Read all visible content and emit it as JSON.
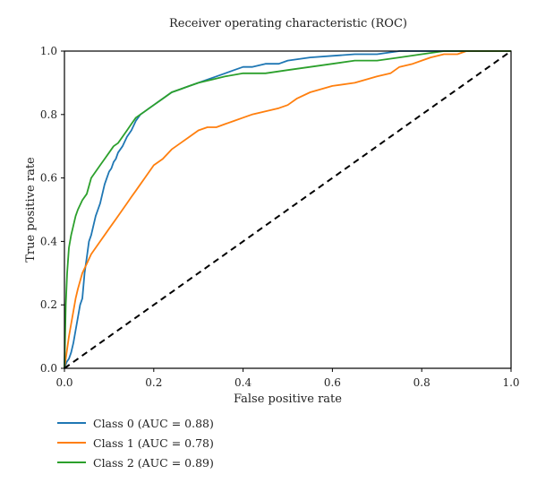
{
  "chart_data": {
    "type": "line",
    "title": "Receiver operating characteristic (ROC)",
    "xlabel": "False positive rate",
    "ylabel": "True positive rate",
    "xlim": [
      0,
      1
    ],
    "ylim": [
      0,
      1
    ],
    "xticks": [
      "0.0",
      "0.2",
      "0.4",
      "0.6",
      "0.8",
      "1.0"
    ],
    "yticks": [
      "0.0",
      "0.2",
      "0.4",
      "0.6",
      "0.8",
      "1.0"
    ],
    "grid": false,
    "legend_position": "below-left",
    "series": [
      {
        "name": "Class 0 (AUC = 0.88)",
        "color": "#1f77b4",
        "x": [
          0,
          0.005,
          0.01,
          0.015,
          0.02,
          0.025,
          0.03,
          0.035,
          0.04,
          0.045,
          0.05,
          0.055,
          0.06,
          0.065,
          0.07,
          0.075,
          0.08,
          0.085,
          0.09,
          0.095,
          0.1,
          0.105,
          0.11,
          0.115,
          0.12,
          0.13,
          0.14,
          0.15,
          0.16,
          0.17,
          0.18,
          0.19,
          0.2,
          0.21,
          0.22,
          0.24,
          0.26,
          0.28,
          0.3,
          0.32,
          0.34,
          0.36,
          0.38,
          0.4,
          0.42,
          0.45,
          0.48,
          0.5,
          0.55,
          0.6,
          0.65,
          0.7,
          0.75,
          0.8,
          0.85,
          0.9,
          1.0
        ],
        "y": [
          0,
          0.02,
          0.03,
          0.05,
          0.08,
          0.12,
          0.16,
          0.2,
          0.22,
          0.3,
          0.35,
          0.4,
          0.42,
          0.45,
          0.48,
          0.5,
          0.52,
          0.55,
          0.58,
          0.6,
          0.62,
          0.63,
          0.65,
          0.66,
          0.68,
          0.7,
          0.73,
          0.75,
          0.78,
          0.8,
          0.81,
          0.82,
          0.83,
          0.84,
          0.85,
          0.87,
          0.88,
          0.89,
          0.9,
          0.91,
          0.92,
          0.93,
          0.94,
          0.95,
          0.95,
          0.96,
          0.96,
          0.97,
          0.98,
          0.985,
          0.99,
          0.99,
          1.0,
          1.0,
          1.0,
          1.0,
          1.0
        ]
      },
      {
        "name": "Class 1 (AUC = 0.78)",
        "color": "#ff7f0e",
        "x": [
          0,
          0.005,
          0.01,
          0.015,
          0.02,
          0.025,
          0.03,
          0.04,
          0.05,
          0.06,
          0.07,
          0.08,
          0.09,
          0.1,
          0.11,
          0.12,
          0.13,
          0.14,
          0.15,
          0.16,
          0.17,
          0.18,
          0.19,
          0.2,
          0.21,
          0.22,
          0.24,
          0.26,
          0.28,
          0.3,
          0.32,
          0.34,
          0.36,
          0.38,
          0.4,
          0.42,
          0.45,
          0.48,
          0.5,
          0.52,
          0.55,
          0.6,
          0.65,
          0.7,
          0.73,
          0.75,
          0.78,
          0.8,
          0.82,
          0.85,
          0.88,
          0.9,
          1.0
        ],
        "y": [
          0,
          0.05,
          0.1,
          0.14,
          0.18,
          0.22,
          0.25,
          0.3,
          0.33,
          0.36,
          0.38,
          0.4,
          0.42,
          0.44,
          0.46,
          0.48,
          0.5,
          0.52,
          0.54,
          0.56,
          0.58,
          0.6,
          0.62,
          0.64,
          0.65,
          0.66,
          0.69,
          0.71,
          0.73,
          0.75,
          0.76,
          0.76,
          0.77,
          0.78,
          0.79,
          0.8,
          0.81,
          0.82,
          0.83,
          0.85,
          0.87,
          0.89,
          0.9,
          0.92,
          0.93,
          0.95,
          0.96,
          0.97,
          0.98,
          0.99,
          0.99,
          1.0,
          1.0
        ]
      },
      {
        "name": "Class 2 (AUC = 0.89)",
        "color": "#2ca02c",
        "x": [
          0,
          0.003,
          0.006,
          0.01,
          0.015,
          0.02,
          0.025,
          0.03,
          0.04,
          0.05,
          0.06,
          0.07,
          0.08,
          0.09,
          0.1,
          0.11,
          0.12,
          0.13,
          0.14,
          0.15,
          0.16,
          0.17,
          0.18,
          0.2,
          0.22,
          0.24,
          0.26,
          0.28,
          0.3,
          0.33,
          0.36,
          0.4,
          0.45,
          0.5,
          0.55,
          0.6,
          0.65,
          0.7,
          0.75,
          0.8,
          0.85,
          0.9,
          1.0
        ],
        "y": [
          0,
          0.2,
          0.3,
          0.38,
          0.42,
          0.45,
          0.48,
          0.5,
          0.53,
          0.55,
          0.6,
          0.62,
          0.64,
          0.66,
          0.68,
          0.7,
          0.71,
          0.73,
          0.75,
          0.77,
          0.79,
          0.8,
          0.81,
          0.83,
          0.85,
          0.87,
          0.88,
          0.89,
          0.9,
          0.91,
          0.92,
          0.93,
          0.93,
          0.94,
          0.95,
          0.96,
          0.97,
          0.97,
          0.98,
          0.99,
          1.0,
          1.0,
          1.0
        ]
      }
    ],
    "reference_line": {
      "x": [
        0,
        1
      ],
      "y": [
        0,
        1
      ],
      "style": "dashed",
      "color": "#000000"
    }
  }
}
